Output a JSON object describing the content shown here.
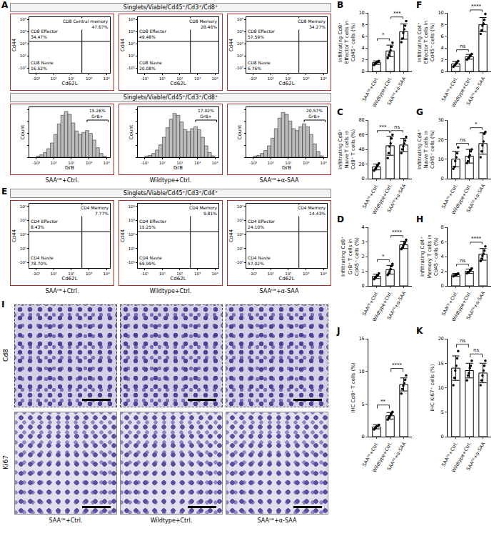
{
  "conditions": [
    "SAAᴼᴱ+Ctrl.",
    "Wildtype+Ctrl.",
    "SAAᴼᴱ+α-SAA"
  ],
  "flow": {
    "cd8": {
      "letter": "A",
      "header": "Singlets/Viable/Cd45⁺/Cd3⁺/Cd8⁺",
      "x_label": "Cd62L",
      "y_label": "Cd44",
      "xlim": [
        0,
        4.6
      ],
      "ylim": [
        0,
        4.6
      ],
      "xticks": [
        {
          "value": 0.4,
          "label": "-10¹"
        },
        {
          "value": 1.4,
          "label": "10¹"
        },
        {
          "value": 2.4,
          "label": "10²"
        },
        {
          "value": 3.4,
          "label": "10³"
        },
        {
          "value": 4.4,
          "label": "10⁴"
        }
      ],
      "yticks": [
        {
          "value": 0.4,
          "label": "-10¹"
        },
        {
          "value": 1.4,
          "label": "10¹"
        },
        {
          "value": 2.4,
          "label": "10²"
        },
        {
          "value": 3.4,
          "label": "10³"
        },
        {
          "value": 4.4,
          "label": "10⁴"
        }
      ],
      "x_gate": 3.0,
      "y_gate": 2.6,
      "plots": [
        {
          "effector": {
            "label": "CD8 Effector",
            "percent": "34.47%"
          },
          "memory": {
            "label": "CD8 Central memory",
            "percent": "47.67%"
          },
          "naive": {
            "label": "CD8 Navie",
            "percent": "16.52%"
          }
        },
        {
          "effector": {
            "label": "CD8 Effector",
            "percent": "49.48%"
          },
          "memory": {
            "label": "CD8 Memory",
            "percent": "28.46%"
          },
          "naive": {
            "label": "CD8 Navie",
            "percent": "20.08%"
          }
        },
        {
          "effector": {
            "label": "CD8 Effector",
            "percent": "57.59%"
          },
          "memory": {
            "label": "CD8 Memory",
            "percent": "34.27%"
          },
          "naive": {
            "label": "CD8 Navie",
            "percent": "6.76%"
          }
        }
      ]
    },
    "grb": {
      "header": "Singlets/Viable/Cd45⁺/Cd3⁺/Cd8⁺",
      "type": "histogram",
      "x_label": "GrB",
      "y_label": "Count",
      "xlim": [
        0,
        4.6
      ],
      "ylim": [
        0,
        105
      ],
      "xticks": [
        {
          "value": 0.4,
          "label": "-10¹"
        },
        {
          "value": 1.4,
          "label": "10¹"
        },
        {
          "value": 2.4,
          "label": "10²"
        },
        {
          "value": 3.4,
          "label": "10³"
        },
        {
          "value": 4.4,
          "label": "10⁴"
        }
      ],
      "yticks": [
        0,
        25,
        50,
        75,
        100
      ],
      "tick_labels": "x",
      "color": "#bdbdbd",
      "bins": [
        0.4,
        0.6,
        0.8,
        1.0,
        1.2,
        1.4,
        1.6,
        1.8,
        2.0,
        2.2,
        2.4,
        2.6,
        2.8,
        3.0,
        3.2,
        3.4,
        3.6,
        3.8,
        4.0,
        4.2,
        4.4
      ],
      "plots": [
        {
          "counts": [
            2,
            5,
            10,
            18,
            30,
            48,
            70,
            88,
            96,
            90,
            72,
            55,
            48,
            52,
            56,
            50,
            36,
            20,
            8,
            2
          ],
          "gate": {
            "label": "GrB+",
            "percent": "15.26%",
            "from": 3.3,
            "to": 4.5,
            "y": 78
          }
        },
        {
          "counts": [
            2,
            4,
            8,
            15,
            26,
            42,
            62,
            80,
            92,
            88,
            74,
            58,
            54,
            60,
            64,
            58,
            42,
            24,
            10,
            3
          ],
          "gate": {
            "label": "GrB+",
            "percent": "17.02%",
            "from": 3.3,
            "to": 4.5,
            "y": 78
          }
        },
        {
          "counts": [
            2,
            4,
            8,
            14,
            24,
            40,
            60,
            82,
            94,
            90,
            76,
            60,
            56,
            64,
            70,
            64,
            48,
            28,
            12,
            3
          ],
          "gate": {
            "label": "GrB+",
            "percent": "20.57%",
            "from": 3.3,
            "to": 4.5,
            "y": 78
          }
        }
      ]
    },
    "cd4": {
      "letter": "E",
      "header": "Singlets/Viable/Cd45⁺/Cd3⁺/Cd4⁺",
      "x_label": "Cd62L",
      "y_label": "Cd44",
      "xlim": [
        0,
        4.6
      ],
      "ylim": [
        0,
        4.6
      ],
      "xticks": [
        {
          "value": 0.4,
          "label": "-10¹"
        },
        {
          "value": 1.4,
          "label": "10¹"
        },
        {
          "value": 2.4,
          "label": "10²"
        },
        {
          "value": 3.4,
          "label": "10³"
        },
        {
          "value": 4.4,
          "label": "10⁴"
        }
      ],
      "yticks": [
        {
          "value": 0.4,
          "label": "-10¹"
        },
        {
          "value": 1.4,
          "label": "10¹"
        },
        {
          "value": 2.4,
          "label": "10²"
        },
        {
          "value": 3.4,
          "label": "10³"
        },
        {
          "value": 4.4,
          "label": "10⁴"
        }
      ],
      "x_gate": 3.0,
      "y_gate": 2.6,
      "plots": [
        {
          "effector": {
            "label": "CD4 Effector",
            "percent": "8.43%"
          },
          "memory": {
            "label": "CD4 Memory",
            "percent": "7.77%"
          },
          "naive": {
            "label": "CD4 Navie",
            "percent": "78.70%"
          }
        },
        {
          "effector": {
            "label": "CD4 Effector",
            "percent": "15.25%"
          },
          "memory": {
            "label": "CD4 Memory",
            "percent": "9.81%"
          },
          "naive": {
            "label": "CD4 Navie",
            "percent": "69.99%"
          }
        },
        {
          "effector": {
            "label": "CD4 Effector",
            "percent": "24.10%"
          },
          "memory": {
            "label": "CD4 Memory",
            "percent": "14.43%"
          },
          "naive": {
            "label": "CD4 Navie",
            "percent": "57.02%"
          }
        }
      ]
    }
  },
  "ihc": {
    "letter": "I",
    "rows": [
      "Cd8",
      "Ki67"
    ]
  },
  "chart_data": [
    {
      "type": "bar",
      "letter": "B",
      "ylabel": "Infiltrating Cd8⁺ Effector T cells in Cd45⁺ cells (%)",
      "categories": [
        "SAAᴼᴱ+Ctrl.",
        "Wildtype+Ctrl.",
        "SAAᴼᴱ+α-SAA"
      ],
      "values": [
        1.5,
        3.5,
        6.8
      ],
      "error": [
        0.3,
        1.0,
        1.3
      ],
      "points": [
        [
          1.1,
          1.3,
          1.5,
          1.6,
          1.7,
          1.8
        ],
        [
          2.3,
          2.8,
          3.2,
          3.6,
          4.2,
          4.9
        ],
        [
          5.0,
          5.6,
          6.6,
          7.2,
          7.8,
          8.6
        ]
      ],
      "ylim": [
        0,
        10
      ],
      "yticks": [
        0,
        2,
        4,
        6,
        8,
        10
      ],
      "significance": [
        {
          "from": 0,
          "to": 1,
          "label": "*"
        },
        {
          "from": 1,
          "to": 2,
          "label": "***"
        }
      ],
      "color": "#ffffff",
      "marker": "circle"
    },
    {
      "type": "bar",
      "letter": "C",
      "ylabel": "Infiltrating Cd8⁺ Naive T cells in Cd8⁺ T cells (%)",
      "categories": [
        "SAAᴼᴱ+Ctrl.",
        "Wildtype+Ctrl.",
        "SAAᴼᴱ+α-SAA"
      ],
      "values": [
        16,
        45,
        46
      ],
      "error": [
        4,
        13,
        9
      ],
      "points": [
        [
          11,
          13,
          15,
          17,
          19,
          21
        ],
        [
          28,
          35,
          44,
          48,
          55,
          60
        ],
        [
          35,
          40,
          44,
          48,
          52,
          57
        ]
      ],
      "ylim": [
        0,
        80
      ],
      "yticks": [
        0,
        20,
        40,
        60,
        80
      ],
      "significance": [
        {
          "from": 0,
          "to": 1,
          "label": "***"
        },
        {
          "from": 1,
          "to": 2,
          "label": "ns"
        }
      ],
      "color": "#ffffff",
      "marker": "circle"
    },
    {
      "type": "bar",
      "letter": "D",
      "ylabel": "Infiltrating Cd8⁺ GrB⁺ T cells in Cd45⁺ cells (%)",
      "categories": [
        "SAAᴼᴱ+Ctrl.",
        "Wildtype+Ctrl.",
        "SAAᴼᴱ+α-SAA"
      ],
      "values": [
        0.65,
        1.1,
        2.8
      ],
      "error": [
        0.15,
        0.3,
        0.25
      ],
      "points": [
        [
          0.45,
          0.55,
          0.62,
          0.68,
          0.75,
          0.85
        ],
        [
          0.75,
          0.85,
          1.0,
          1.15,
          1.35,
          1.5
        ],
        [
          2.5,
          2.6,
          2.75,
          2.85,
          2.95,
          3.15
        ]
      ],
      "ylim": [
        0,
        4
      ],
      "yticks": [
        0,
        1,
        2,
        3,
        4
      ],
      "significance": [
        {
          "from": 0,
          "to": 1,
          "label": "*"
        },
        {
          "from": 1,
          "to": 2,
          "label": "****"
        }
      ],
      "color": "#ffffff",
      "marker": "circle"
    },
    {
      "type": "bar",
      "letter": "F",
      "ylabel": "Infiltrating Cd4⁺ Effector T cells in Cd45⁺ cells (%)",
      "categories": [
        "SAAᴼᴱ+Ctrl.",
        "Wildtype+Ctrl.",
        "SAAᴼᴱ+α-SAA"
      ],
      "values": [
        1.3,
        2.5,
        8.0
      ],
      "error": [
        0.4,
        0.4,
        1.2
      ],
      "points": [
        [
          0.8,
          1.0,
          1.2,
          1.4,
          1.6,
          1.8
        ],
        [
          2.0,
          2.2,
          2.4,
          2.6,
          2.8,
          3.0
        ],
        [
          6.4,
          7.0,
          7.8,
          8.2,
          8.8,
          9.8
        ]
      ],
      "ylim": [
        0,
        10
      ],
      "yticks": [
        0,
        2,
        4,
        6,
        8,
        10
      ],
      "significance": [
        {
          "from": 0,
          "to": 1,
          "label": "ns"
        },
        {
          "from": 1,
          "to": 2,
          "label": "****"
        }
      ],
      "color": "#ffffff",
      "marker": "circle"
    },
    {
      "type": "bar",
      "letter": "G",
      "ylabel": "Infiltrating Cd4⁺ Naive T cells in Cd45⁺ cells (%)",
      "categories": [
        "SAAᴼᴱ+Ctrl.",
        "Wildtype+Ctrl.",
        "SAAᴼᴱ+α-SAA"
      ],
      "values": [
        10,
        11.5,
        18
      ],
      "error": [
        4,
        3.5,
        5.5
      ],
      "points": [
        [
          5,
          6,
          9,
          11,
          13,
          16
        ],
        [
          8,
          9,
          11,
          12,
          14,
          15
        ],
        [
          11,
          14,
          17,
          19,
          23,
          24
        ]
      ],
      "ylim": [
        0,
        30
      ],
      "yticks": [
        0,
        10,
        20,
        30
      ],
      "significance": [
        {
          "from": 0,
          "to": 1,
          "label": "ns"
        },
        {
          "from": 1,
          "to": 2,
          "label": "*"
        }
      ],
      "color": "#ffffff",
      "marker": "circle"
    },
    {
      "type": "bar",
      "letter": "H",
      "ylabel": "Infiltrating Cd4⁺ Memory T cells in Cd45⁺ cells (%)",
      "categories": [
        "SAAᴼᴱ+Ctrl.",
        "Wildtype+Ctrl.",
        "SAAᴼᴱ+α-SAA"
      ],
      "values": [
        1.5,
        2.0,
        4.3
      ],
      "error": [
        0.2,
        0.3,
        0.8
      ],
      "points": [
        [
          1.3,
          1.4,
          1.5,
          1.5,
          1.6,
          1.7
        ],
        [
          1.7,
          1.8,
          1.9,
          2.0,
          2.2,
          2.4
        ],
        [
          3.4,
          3.7,
          4.1,
          4.4,
          4.8,
          5.4
        ]
      ],
      "ylim": [
        0,
        8
      ],
      "yticks": [
        0,
        2,
        4,
        6,
        8
      ],
      "significance": [
        {
          "from": 0,
          "to": 1,
          "label": "ns"
        },
        {
          "from": 1,
          "to": 2,
          "label": "****"
        }
      ],
      "color": "#ffffff",
      "marker": "circle"
    },
    {
      "type": "bar",
      "letter": "J",
      "ylabel": "IHC Cd8⁺ T cells (%)",
      "categories": [
        "SAAᴼᴱ+Ctrl.",
        "Wildtype+Ctrl.",
        "SAAᴼᴱ+α-SAA"
      ],
      "values": [
        1.5,
        3.2,
        8.0
      ],
      "error": [
        0.3,
        0.5,
        1.0
      ],
      "points": [
        [
          1.1,
          1.3,
          1.5,
          1.6,
          1.7,
          1.8
        ],
        [
          2.6,
          2.9,
          3.1,
          3.3,
          3.5,
          3.8
        ],
        [
          6.6,
          7.3,
          7.8,
          8.2,
          8.7,
          9.4
        ]
      ],
      "ylim": [
        0,
        15
      ],
      "yticks": [
        0,
        5,
        10,
        15
      ],
      "significance": [
        {
          "from": 0,
          "to": 1,
          "label": "**"
        },
        {
          "from": 1,
          "to": 2,
          "label": "****"
        }
      ],
      "color": "#ffffff",
      "marker": "circle"
    },
    {
      "type": "bar",
      "letter": "K",
      "ylabel": "IHC Ki67⁺ cells (%)",
      "categories": [
        "SAAᴼᴱ+Ctrl.",
        "Wildtype+Ctrl.",
        "SAAᴼᴱ+α-SAA"
      ],
      "values": [
        14,
        13.5,
        13
      ],
      "error": [
        2.5,
        1.5,
        2
      ],
      "points": [
        [
          10.5,
          12,
          13.5,
          14.5,
          16,
          17.5
        ],
        [
          11.5,
          12.5,
          13,
          14,
          14.5,
          15.5
        ],
        [
          10.5,
          11.5,
          12.5,
          13.5,
          14.5,
          15.5
        ]
      ],
      "ylim": [
        0,
        20
      ],
      "yticks": [
        0,
        5,
        10,
        15,
        20
      ],
      "significance": [
        {
          "from": 0,
          "to": 1,
          "label": "ns"
        },
        {
          "from": 1,
          "to": 2,
          "label": "ns"
        }
      ],
      "color": "#ffffff",
      "marker": "circle"
    }
  ]
}
